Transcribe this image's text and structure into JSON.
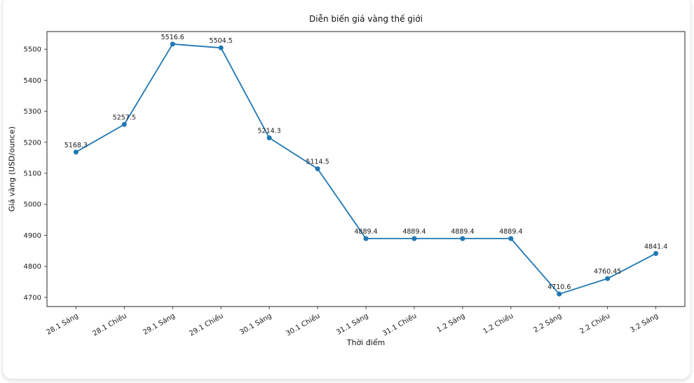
{
  "chart_data": {
    "type": "line",
    "title": "Diễn biến giá vàng thế giới",
    "xlabel": "Thời điểm",
    "ylabel": "Giá vàng (USD/ounce)",
    "categories": [
      "28.1 Sáng",
      "28.1 Chiều",
      "29.1 Sáng",
      "29.1 Chiều",
      "30.1 Sáng",
      "30.1 Chiều",
      "31.1 Sáng",
      "31.1 Chiều",
      "1.2 Sáng",
      "1.2 Chiều",
      "2.2 Sáng",
      "2.2 Chiều",
      "3.2 Sáng"
    ],
    "values": [
      5168.3,
      5257.5,
      5516.6,
      5504.5,
      5214.3,
      5114.5,
      4889.4,
      4889.4,
      4889.4,
      4889.4,
      4710.6,
      4760.45,
      4841.4
    ],
    "y_ticks": [
      4700,
      4800,
      4900,
      5000,
      5100,
      5200,
      5300,
      5400,
      5500
    ],
    "ylim": [
      4670.3,
      5556.9
    ],
    "xlim": [
      -0.6,
      12.6
    ],
    "x_tick_rotation": 30,
    "grid": false,
    "legend": "none",
    "line_color": "#1f77b4",
    "marker_color": "#1f77b4",
    "text_color": "#1a1a1a",
    "spine_color": "#262626"
  }
}
